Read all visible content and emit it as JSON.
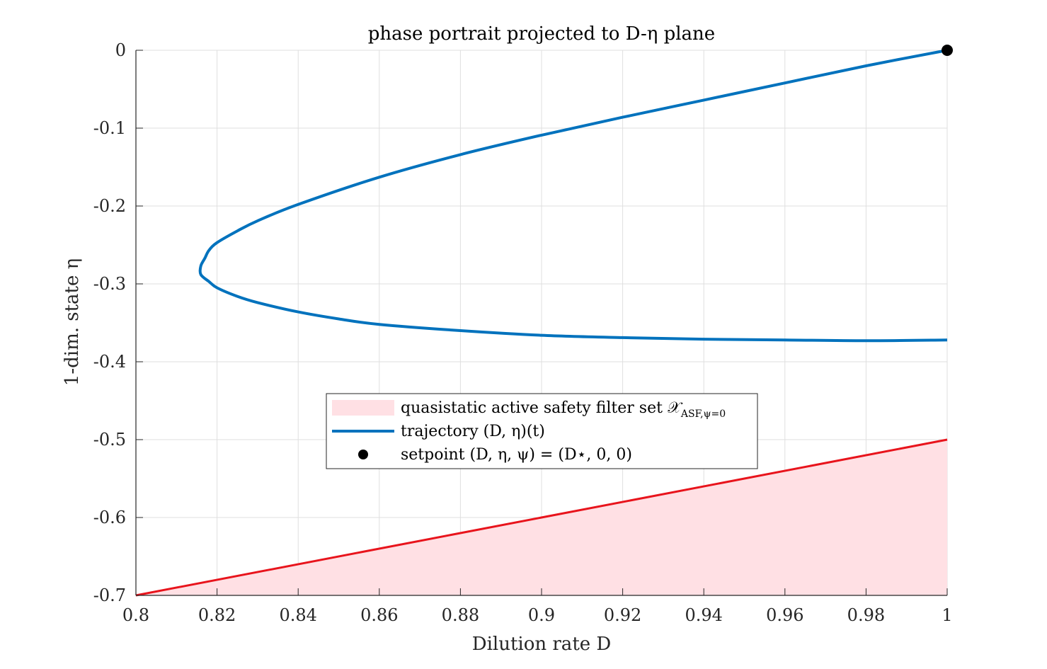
{
  "chart_data": {
    "type": "line",
    "title": "phase portrait projected to D-η plane",
    "xlabel": "Dilution rate D",
    "ylabel": "1-dim. state η",
    "xlim": [
      0.8,
      1.0
    ],
    "ylim": [
      -0.7,
      0.0
    ],
    "x_ticks": [
      "0.8",
      "0.82",
      "0.84",
      "0.86",
      "0.88",
      "0.9",
      "0.92",
      "0.94",
      "0.96",
      "0.98",
      "1"
    ],
    "y_ticks": [
      "0",
      "-0.1",
      "-0.2",
      "-0.3",
      "-0.4",
      "-0.5",
      "-0.6",
      "-0.7"
    ],
    "grid": true,
    "legend_position": "center",
    "colors": {
      "trajectory": "#0072bd",
      "safety_fill": "#ffe0e4",
      "safety_edge": "#e8141c",
      "setpoint": "#000000"
    },
    "series": [
      {
        "name": "quasistatic active safety filter set X_ASF,ψ=0",
        "kind": "area",
        "x": [
          0.8,
          1.0
        ],
        "y": [
          -0.7,
          -0.5
        ],
        "fill_to": -0.7
      },
      {
        "name": "trajectory (D, η)(t)",
        "kind": "line",
        "x": [
          1.0,
          0.98,
          0.96,
          0.94,
          0.92,
          0.9,
          0.88,
          0.86,
          0.84,
          0.83,
          0.825,
          0.82,
          0.818,
          0.817,
          0.816,
          0.816,
          0.818,
          0.82,
          0.825,
          0.83,
          0.84,
          0.85,
          0.86,
          0.88,
          0.9,
          0.92,
          0.94,
          0.96,
          0.98,
          1.0
        ],
        "y": [
          0.0,
          -0.02,
          -0.042,
          -0.064,
          -0.086,
          -0.109,
          -0.134,
          -0.163,
          -0.198,
          -0.219,
          -0.232,
          -0.247,
          -0.257,
          -0.267,
          -0.277,
          -0.288,
          -0.297,
          -0.305,
          -0.316,
          -0.324,
          -0.336,
          -0.345,
          -0.352,
          -0.36,
          -0.366,
          -0.369,
          -0.371,
          -0.372,
          -0.373,
          -0.372
        ]
      },
      {
        "name": "setpoint (D, η, ψ) = (D*, 0, 0)",
        "kind": "point",
        "x": [
          1.0
        ],
        "y": [
          0.0
        ]
      }
    ],
    "legend": [
      {
        "label": "quasistatic active safety filter set 𝒳",
        "sub": "ASF,ψ=0"
      },
      {
        "label": "trajectory (D, η)(t)",
        "sub": ""
      },
      {
        "label": "setpoint (D, η, ψ) = (D⋆, 0, 0)",
        "sub": ""
      }
    ]
  }
}
